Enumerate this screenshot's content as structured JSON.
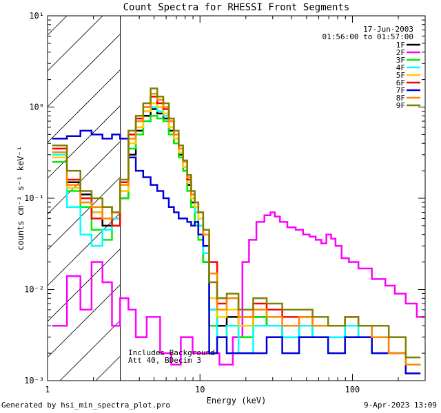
{
  "chart_data": {
    "type": "line",
    "title": "Count Spectra for RHESSI Front Segments",
    "xlabel": "Energy (keV)",
    "ylabel": "counts cm⁻² s⁻¹ keV⁻¹",
    "xscale": "log",
    "yscale": "log",
    "xlim": [
      1,
      300
    ],
    "ylim": [
      0.001,
      10
    ],
    "x_ticks": [
      {
        "value": 1,
        "label": "1"
      },
      {
        "value": 10,
        "label": "10"
      },
      {
        "value": 100,
        "label": "100"
      }
    ],
    "y_ticks": [
      {
        "value": 0.001,
        "label": "10⁻³"
      },
      {
        "value": 0.01,
        "label": "10⁻²"
      },
      {
        "value": 0.1,
        "label": "10⁻¹"
      },
      {
        "value": 1,
        "label": "10⁰"
      },
      {
        "value": 10,
        "label": "10¹"
      }
    ],
    "hatched_region": {
      "x_from": 1,
      "x_to": 3
    },
    "legend": {
      "position": "top-right",
      "date": "17-Jun-2003",
      "time_range": "01:56:00 to 01:57:00"
    },
    "annotations": [
      "Includes Background",
      "Att 40, BDecim 3"
    ],
    "series": [
      {
        "name": "1F",
        "color": "#000000",
        "x": [
          1.2,
          1.5,
          1.8,
          2.1,
          2.5,
          2.8,
          3.2,
          3.6,
          4.0,
          4.5,
          5.0,
          5.5,
          6.0,
          6.5,
          7.0,
          7.5,
          8.0,
          8.5,
          9.0,
          9.5,
          10,
          11,
          12,
          14,
          16,
          20,
          25,
          30,
          40,
          50,
          60,
          80,
          100,
          120,
          150,
          200,
          250
        ],
        "y": [
          0.3,
          0.15,
          0.11,
          0.07,
          0.05,
          0.06,
          0.1,
          0.3,
          0.55,
          0.8,
          0.95,
          0.85,
          0.75,
          0.55,
          0.4,
          0.3,
          0.2,
          0.14,
          0.09,
          0.07,
          0.05,
          0.02,
          0.006,
          0.004,
          0.005,
          0.004,
          0.005,
          0.004,
          0.003,
          0.004,
          0.003,
          0.003,
          0.004,
          0.003,
          0.003,
          0.002,
          0.0015
        ]
      },
      {
        "name": "2F",
        "color": "#ff00ff",
        "x": [
          1.2,
          1.5,
          1.8,
          2.1,
          2.5,
          2.8,
          3.2,
          3.6,
          4.0,
          5.0,
          6.0,
          7.0,
          8.0,
          10,
          12,
          15,
          18,
          20,
          22,
          25,
          28,
          30,
          32,
          35,
          40,
          45,
          50,
          55,
          60,
          65,
          70,
          75,
          80,
          90,
          100,
          120,
          150,
          180,
          200,
          250,
          280
        ],
        "y": [
          0.004,
          0.014,
          0.006,
          0.02,
          0.012,
          0.004,
          0.008,
          0.006,
          0.003,
          0.005,
          0.002,
          0.0015,
          0.003,
          0.002,
          0.002,
          0.0015,
          0.003,
          0.02,
          0.035,
          0.055,
          0.065,
          0.07,
          0.063,
          0.055,
          0.048,
          0.045,
          0.04,
          0.038,
          0.035,
          0.032,
          0.04,
          0.036,
          0.03,
          0.022,
          0.02,
          0.017,
          0.013,
          0.011,
          0.009,
          0.007,
          0.005
        ]
      },
      {
        "name": "3F",
        "color": "#00ee00",
        "x": [
          1.2,
          1.5,
          1.8,
          2.1,
          2.5,
          2.8,
          3.2,
          3.6,
          4.0,
          4.5,
          5.0,
          5.5,
          6.0,
          6.5,
          7.0,
          7.5,
          8.0,
          8.5,
          9.0,
          9.5,
          10,
          11,
          12,
          14,
          16,
          20,
          25,
          30,
          40,
          50,
          60,
          80,
          100,
          120,
          150,
          200,
          250
        ],
        "y": [
          0.25,
          0.12,
          0.08,
          0.045,
          0.035,
          0.05,
          0.1,
          0.35,
          0.5,
          0.7,
          0.8,
          0.75,
          0.7,
          0.5,
          0.4,
          0.28,
          0.2,
          0.12,
          0.08,
          0.05,
          0.035,
          0.02,
          0.004,
          0.003,
          0.004,
          0.003,
          0.005,
          0.004,
          0.003,
          0.004,
          0.003,
          0.003,
          0.004,
          0.003,
          0.002,
          0.002,
          0.0012
        ]
      },
      {
        "name": "4F",
        "color": "#00ffff",
        "x": [
          1.2,
          1.5,
          1.8,
          2.1,
          2.5,
          2.8,
          3.2,
          3.6,
          4.0,
          4.5,
          5.0,
          5.5,
          6.0,
          6.5,
          7.0,
          7.5,
          8.0,
          8.5,
          9.0,
          9.5,
          10,
          11,
          12,
          14,
          16,
          20,
          25,
          30,
          40,
          50,
          60,
          80,
          100,
          120,
          150,
          200,
          250
        ],
        "y": [
          0.3,
          0.08,
          0.04,
          0.03,
          0.045,
          0.06,
          0.12,
          0.5,
          0.7,
          0.9,
          1.0,
          0.9,
          0.8,
          0.6,
          0.45,
          0.32,
          0.22,
          0.15,
          0.1,
          0.07,
          0.05,
          0.025,
          0.006,
          0.003,
          0.004,
          0.002,
          0.004,
          0.004,
          0.003,
          0.004,
          0.003,
          0.003,
          0.004,
          0.003,
          0.003,
          0.002,
          0.0015
        ]
      },
      {
        "name": "5F",
        "color": "#ffcc00",
        "x": [
          1.2,
          1.5,
          1.8,
          2.1,
          2.5,
          2.8,
          3.2,
          3.6,
          4.0,
          4.5,
          5.0,
          5.5,
          6.0,
          6.5,
          7.0,
          7.5,
          8.0,
          8.5,
          9.0,
          9.5,
          10,
          11,
          12,
          14,
          16,
          20,
          25,
          30,
          40,
          50,
          60,
          80,
          100,
          120,
          150,
          200,
          250
        ],
        "y": [
          0.28,
          0.13,
          0.09,
          0.07,
          0.06,
          0.07,
          0.12,
          0.4,
          0.6,
          0.9,
          1.1,
          1.0,
          0.85,
          0.6,
          0.45,
          0.32,
          0.22,
          0.15,
          0.1,
          0.08,
          0.06,
          0.03,
          0.008,
          0.005,
          0.006,
          0.004,
          0.006,
          0.005,
          0.004,
          0.005,
          0.004,
          0.004,
          0.005,
          0.004,
          0.003,
          0.002,
          0.0015
        ]
      },
      {
        "name": "6F",
        "color": "#ff0000",
        "x": [
          1.2,
          1.5,
          1.8,
          2.1,
          2.5,
          2.8,
          3.2,
          3.6,
          4.0,
          4.5,
          5.0,
          5.5,
          6.0,
          6.5,
          7.0,
          7.5,
          8.0,
          8.5,
          9.0,
          9.5,
          10,
          11,
          12,
          14,
          16,
          20,
          25,
          30,
          40,
          50,
          60,
          80,
          100,
          120,
          150,
          200,
          250
        ],
        "y": [
          0.35,
          0.16,
          0.1,
          0.06,
          0.08,
          0.05,
          0.15,
          0.5,
          0.75,
          1.0,
          1.3,
          1.1,
          0.95,
          0.7,
          0.5,
          0.35,
          0.25,
          0.16,
          0.11,
          0.09,
          0.07,
          0.04,
          0.02,
          0.007,
          0.008,
          0.005,
          0.007,
          0.006,
          0.005,
          0.005,
          0.004,
          0.004,
          0.005,
          0.004,
          0.003,
          0.002,
          0.0015
        ]
      },
      {
        "name": "7F",
        "color": "#0000dd",
        "x": [
          1.2,
          1.5,
          1.8,
          2.1,
          2.5,
          2.8,
          3.2,
          3.6,
          4.0,
          4.5,
          5.0,
          5.5,
          6.0,
          6.5,
          7.0,
          7.5,
          8.0,
          8.5,
          9.0,
          9.5,
          10,
          11,
          12,
          14,
          16,
          20,
          25,
          30,
          40,
          50,
          60,
          80,
          100,
          120,
          150,
          200,
          250
        ],
        "y": [
          0.45,
          0.48,
          0.55,
          0.5,
          0.45,
          0.5,
          0.45,
          0.28,
          0.2,
          0.17,
          0.14,
          0.12,
          0.1,
          0.08,
          0.07,
          0.06,
          0.06,
          0.055,
          0.05,
          0.055,
          0.04,
          0.03,
          0.002,
          0.003,
          0.002,
          0.002,
          0.002,
          0.003,
          0.002,
          0.003,
          0.003,
          0.002,
          0.003,
          0.003,
          0.002,
          0.002,
          0.0012
        ]
      },
      {
        "name": "8F",
        "color": "#ff8800",
        "x": [
          1.2,
          1.5,
          1.8,
          2.1,
          2.5,
          2.8,
          3.2,
          3.6,
          4.0,
          4.5,
          5.0,
          5.5,
          6.0,
          6.5,
          7.0,
          7.5,
          8.0,
          8.5,
          9.0,
          9.5,
          10,
          11,
          12,
          14,
          16,
          20,
          25,
          30,
          40,
          50,
          60,
          80,
          100,
          120,
          150,
          200,
          250
        ],
        "y": [
          0.32,
          0.14,
          0.09,
          0.08,
          0.06,
          0.07,
          0.14,
          0.45,
          0.7,
          1.0,
          1.4,
          1.2,
          1.0,
          0.7,
          0.5,
          0.35,
          0.25,
          0.17,
          0.11,
          0.09,
          0.07,
          0.04,
          0.015,
          0.006,
          0.008,
          0.005,
          0.006,
          0.005,
          0.004,
          0.005,
          0.004,
          0.004,
          0.005,
          0.004,
          0.003,
          0.002,
          0.0015
        ]
      },
      {
        "name": "9F",
        "color": "#808000",
        "x": [
          1.2,
          1.5,
          1.8,
          2.1,
          2.5,
          2.8,
          3.2,
          3.6,
          4.0,
          4.5,
          5.0,
          5.5,
          6.0,
          6.5,
          7.0,
          7.5,
          8.0,
          8.5,
          9.0,
          9.5,
          10,
          11,
          12,
          14,
          16,
          20,
          25,
          30,
          40,
          50,
          60,
          80,
          100,
          120,
          150,
          200,
          250
        ],
        "y": [
          0.38,
          0.2,
          0.12,
          0.1,
          0.08,
          0.07,
          0.16,
          0.55,
          0.8,
          1.1,
          1.6,
          1.3,
          1.1,
          0.75,
          0.55,
          0.38,
          0.26,
          0.18,
          0.12,
          0.09,
          0.07,
          0.045,
          0.012,
          0.008,
          0.009,
          0.006,
          0.008,
          0.007,
          0.006,
          0.006,
          0.005,
          0.004,
          0.005,
          0.004,
          0.004,
          0.003,
          0.0018
        ]
      }
    ]
  },
  "footer": {
    "generated_by": "Generated by hsi_min_spectra_plot.pro",
    "timestamp": "9-Apr-2023 13:09"
  }
}
